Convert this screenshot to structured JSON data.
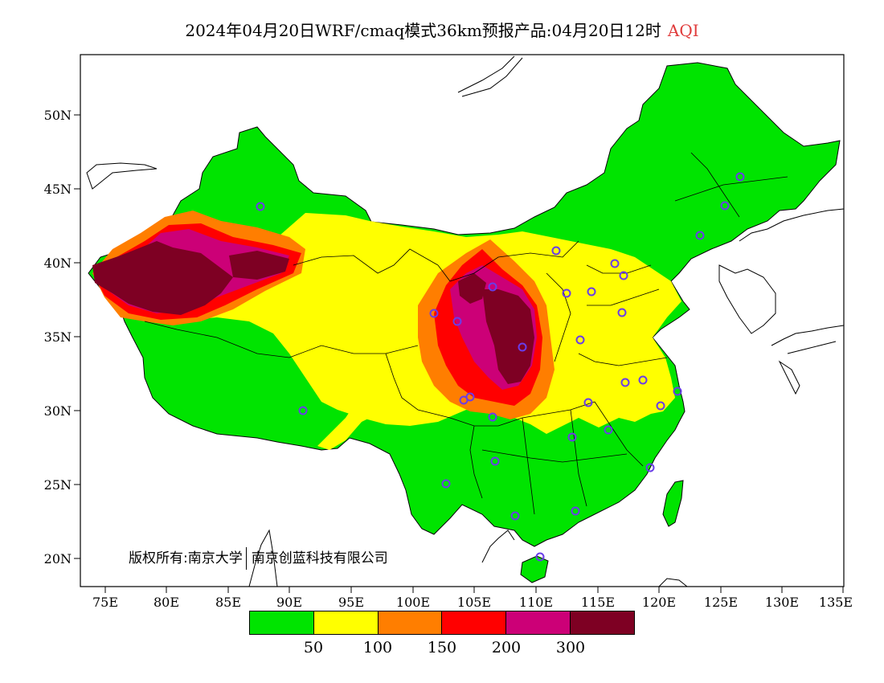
{
  "title": {
    "main": "2024年04月20日WRF/cmaq模式36km预报产品:04月20日12时",
    "variable": "AQI"
  },
  "axes": {
    "lat_labels": [
      "50N",
      "45N",
      "40N",
      "35N",
      "30N",
      "25N",
      "20N"
    ],
    "lon_labels": [
      "75E",
      "80E",
      "85E",
      "90E",
      "95E",
      "100E",
      "105E",
      "110E",
      "115E",
      "120E",
      "125E",
      "130E",
      "135E"
    ]
  },
  "copyright": {
    "left": "版权所有:南京大学",
    "right": "南京创蓝科技有限公司"
  },
  "legend": {
    "colors": [
      "#00e400",
      "#ffff00",
      "#ff7e00",
      "#ff0000",
      "#cc0077",
      "#7e0023"
    ],
    "labels": [
      "50",
      "100",
      "150",
      "200",
      "300"
    ]
  }
}
